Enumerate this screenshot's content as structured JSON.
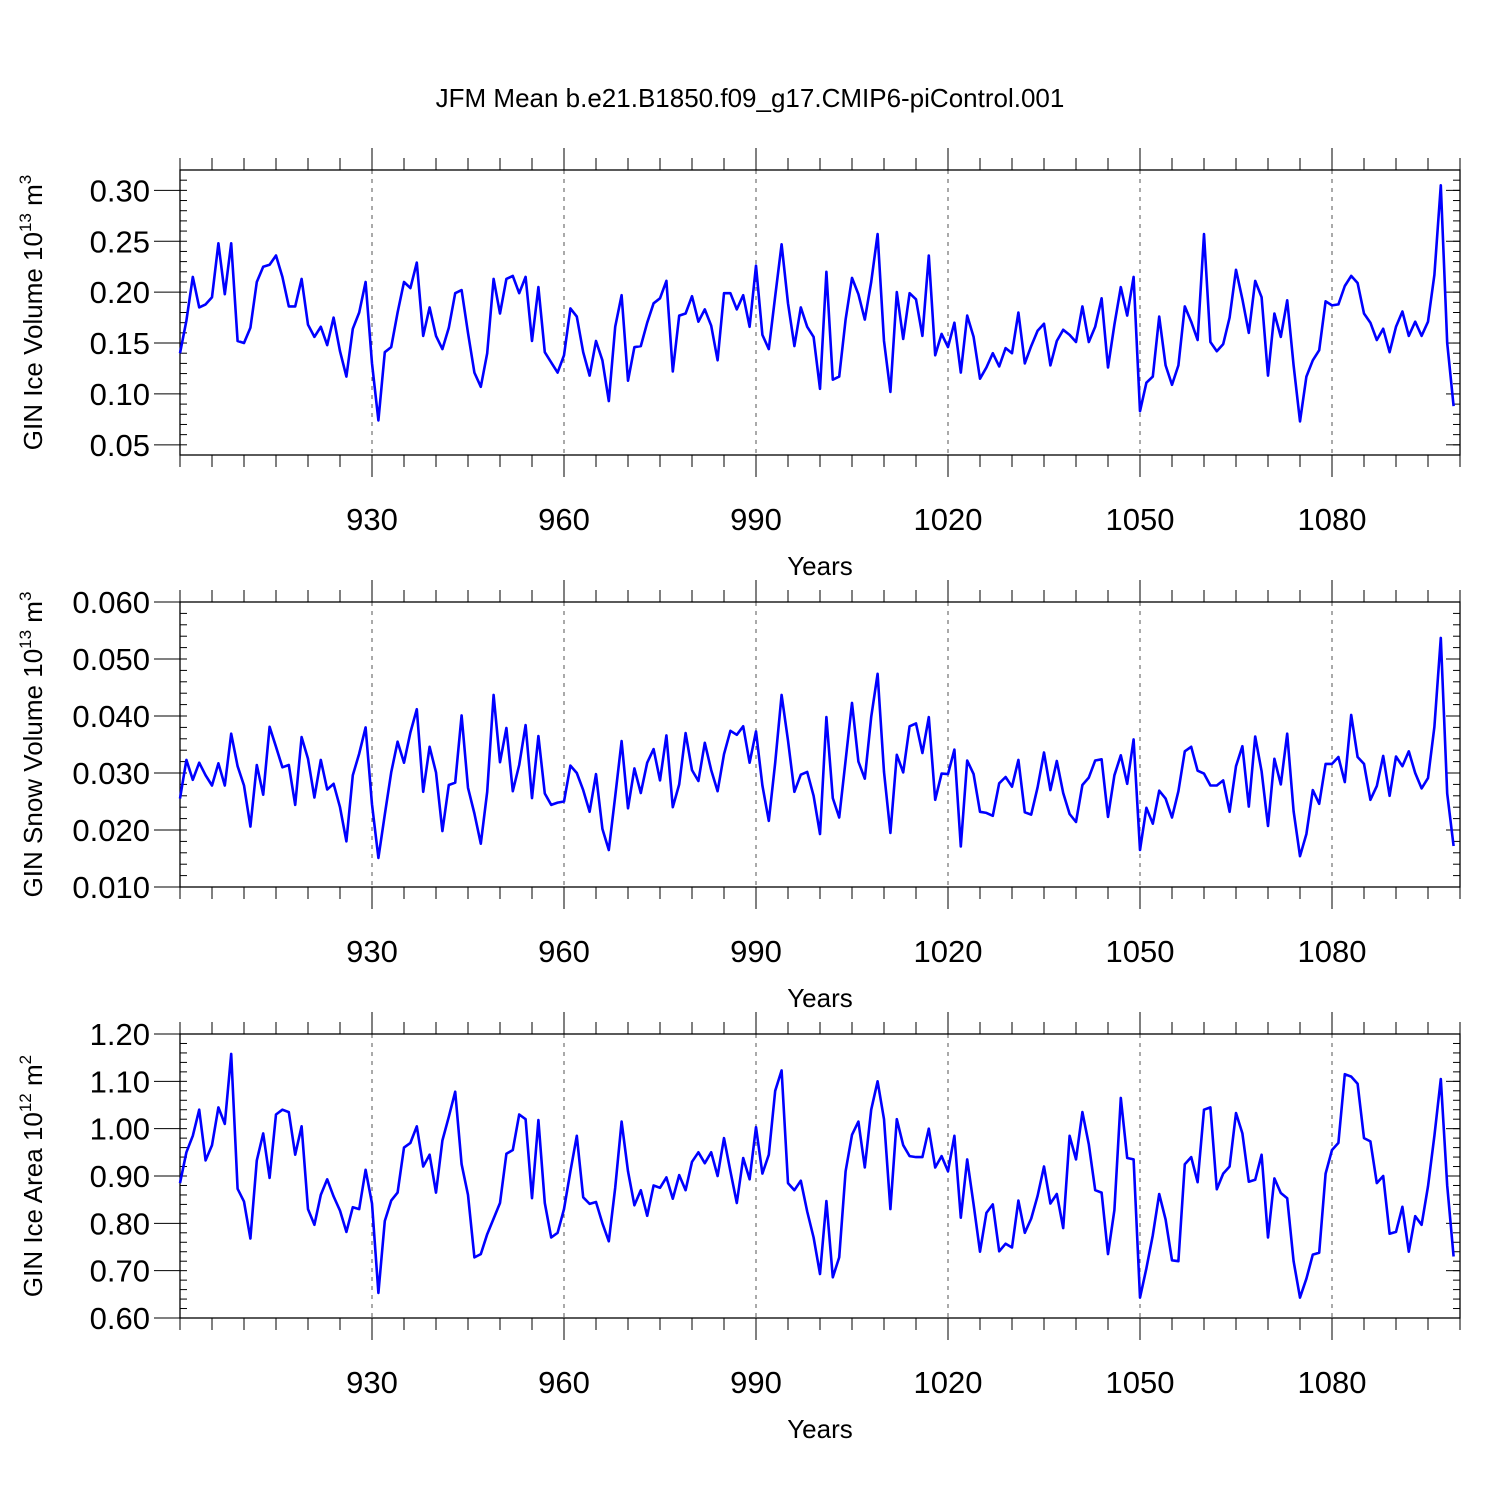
{
  "title": "JFM Mean b.e21.B1850.f09_g17.CMIP6-piControl.001",
  "colors": {
    "series": "#0000ff",
    "axes": "#000000",
    "grid": "#555555"
  },
  "chart_data": [
    {
      "type": "line",
      "ylabel": {
        "main": "GIN Ice Volume 10",
        "sup": "13",
        "unit": " m",
        "unit_sup": "3"
      },
      "xlabel": "Years",
      "xlim": [
        900,
        1100
      ],
      "ylim": [
        0.04,
        0.32
      ],
      "x_ticks": [
        930,
        960,
        990,
        1020,
        1050,
        1080
      ],
      "x_tick_labels": [
        "930",
        "960",
        "990",
        "1020",
        "1050",
        "1080"
      ],
      "y_ticks": [
        0.05,
        0.1,
        0.15,
        0.2,
        0.25,
        0.3
      ],
      "y_tick_labels": [
        "0.05",
        "0.10",
        "0.15",
        "0.20",
        "0.25",
        "0.30"
      ],
      "grid": "x-dashed",
      "series": [
        {
          "x_start": 900,
          "x_step": 1,
          "values": [
            0.14,
            0.172,
            0.215,
            0.185,
            0.188,
            0.195,
            0.248,
            0.198,
            0.248,
            0.152,
            0.15,
            0.165,
            0.21,
            0.225,
            0.227,
            0.236,
            0.215,
            0.186,
            0.186,
            0.213,
            0.168,
            0.156,
            0.166,
            0.148,
            0.175,
            0.142,
            0.117,
            0.164,
            0.18,
            0.21,
            0.13,
            0.074,
            0.141,
            0.146,
            0.18,
            0.21,
            0.204,
            0.229,
            0.157,
            0.185,
            0.157,
            0.144,
            0.165,
            0.199,
            0.202,
            0.16,
            0.121,
            0.107,
            0.14,
            0.213,
            0.179,
            0.213,
            0.216,
            0.199,
            0.215,
            0.152,
            0.205,
            0.141,
            0.131,
            0.121,
            0.138,
            0.184,
            0.176,
            0.141,
            0.118,
            0.152,
            0.133,
            0.093,
            0.166,
            0.197,
            0.113,
            0.146,
            0.147,
            0.17,
            0.189,
            0.194,
            0.211,
            0.122,
            0.177,
            0.179,
            0.196,
            0.171,
            0.183,
            0.167,
            0.133,
            0.199,
            0.199,
            0.183,
            0.197,
            0.166,
            0.226,
            0.158,
            0.144,
            0.196,
            0.247,
            0.189,
            0.147,
            0.185,
            0.166,
            0.156,
            0.105,
            0.22,
            0.114,
            0.117,
            0.173,
            0.214,
            0.198,
            0.173,
            0.21,
            0.257,
            0.152,
            0.102,
            0.2,
            0.154,
            0.199,
            0.193,
            0.157,
            0.236,
            0.138,
            0.159,
            0.146,
            0.17,
            0.121,
            0.177,
            0.156,
            0.115,
            0.126,
            0.14,
            0.127,
            0.145,
            0.14,
            0.18,
            0.13,
            0.147,
            0.162,
            0.169,
            0.128,
            0.152,
            0.163,
            0.158,
            0.151,
            0.186,
            0.151,
            0.166,
            0.194,
            0.126,
            0.168,
            0.205,
            0.177,
            0.215,
            0.083,
            0.111,
            0.117,
            0.176,
            0.128,
            0.109,
            0.128,
            0.186,
            0.171,
            0.153,
            0.257,
            0.151,
            0.142,
            0.149,
            0.175,
            0.222,
            0.193,
            0.16,
            0.211,
            0.195,
            0.118,
            0.179,
            0.156,
            0.192,
            0.128,
            0.073,
            0.117,
            0.133,
            0.143,
            0.191,
            0.187,
            0.188,
            0.206,
            0.216,
            0.209,
            0.179,
            0.17,
            0.153,
            0.164,
            0.141,
            0.166,
            0.181,
            0.157,
            0.171,
            0.157,
            0.171,
            0.217,
            0.305,
            0.15,
            0.088
          ]
        }
      ]
    },
    {
      "type": "line",
      "ylabel": {
        "main": "GIN Snow Volume 10",
        "sup": "13",
        "unit": " m",
        "unit_sup": "3"
      },
      "xlabel": "Years",
      "xlim": [
        900,
        1100
      ],
      "ylim": [
        0.01,
        0.06
      ],
      "x_ticks": [
        930,
        960,
        990,
        1020,
        1050,
        1080
      ],
      "x_tick_labels": [
        "930",
        "960",
        "990",
        "1020",
        "1050",
        "1080"
      ],
      "y_ticks": [
        0.01,
        0.02,
        0.03,
        0.04,
        0.05,
        0.06
      ],
      "y_tick_labels": [
        "0.010",
        "0.020",
        "0.030",
        "0.040",
        "0.050",
        "0.060"
      ],
      "grid": "x-dashed",
      "series": [
        {
          "x_start": 900,
          "x_step": 1,
          "values": [
            0.0255,
            0.0323,
            0.0288,
            0.0318,
            0.0296,
            0.0278,
            0.0317,
            0.0278,
            0.0369,
            0.0312,
            0.0278,
            0.0206,
            0.0314,
            0.0262,
            0.0381,
            0.0346,
            0.031,
            0.0314,
            0.0244,
            0.0363,
            0.0325,
            0.0257,
            0.0323,
            0.0271,
            0.0281,
            0.024,
            0.018,
            0.0296,
            0.0334,
            0.038,
            0.0245,
            0.0151,
            0.0227,
            0.0301,
            0.0355,
            0.0318,
            0.0371,
            0.0412,
            0.0267,
            0.0346,
            0.0301,
            0.0198,
            0.0279,
            0.0283,
            0.0401,
            0.0274,
            0.0229,
            0.0176,
            0.0267,
            0.0437,
            0.0319,
            0.0379,
            0.0268,
            0.0314,
            0.0384,
            0.0256,
            0.0365,
            0.0264,
            0.0244,
            0.0248,
            0.025,
            0.0313,
            0.03,
            0.027,
            0.0232,
            0.0298,
            0.0202,
            0.0165,
            0.0259,
            0.0356,
            0.0238,
            0.0308,
            0.0265,
            0.0318,
            0.0342,
            0.0287,
            0.0366,
            0.024,
            0.028,
            0.037,
            0.0305,
            0.0286,
            0.0353,
            0.0305,
            0.0268,
            0.0333,
            0.0374,
            0.0367,
            0.0382,
            0.0318,
            0.0373,
            0.0278,
            0.0216,
            0.0318,
            0.0437,
            0.0357,
            0.0267,
            0.0297,
            0.0302,
            0.026,
            0.0193,
            0.0398,
            0.0256,
            0.0222,
            0.0322,
            0.0423,
            0.032,
            0.029,
            0.0398,
            0.0474,
            0.0302,
            0.0195,
            0.0332,
            0.0301,
            0.0382,
            0.0387,
            0.0335,
            0.0398,
            0.0253,
            0.0299,
            0.0298,
            0.0341,
            0.0171,
            0.0322,
            0.0298,
            0.0232,
            0.023,
            0.0225,
            0.0282,
            0.0293,
            0.0276,
            0.0323,
            0.0231,
            0.0227,
            0.0275,
            0.0336,
            0.027,
            0.0321,
            0.0265,
            0.0228,
            0.0214,
            0.0279,
            0.0292,
            0.0322,
            0.0324,
            0.0223,
            0.0296,
            0.0331,
            0.0281,
            0.0359,
            0.0165,
            0.0239,
            0.0211,
            0.0269,
            0.0255,
            0.0222,
            0.0268,
            0.0338,
            0.0346,
            0.0304,
            0.0299,
            0.0278,
            0.0278,
            0.0287,
            0.0232,
            0.0312,
            0.0347,
            0.0241,
            0.0364,
            0.0303,
            0.0207,
            0.0325,
            0.028,
            0.0369,
            0.0233,
            0.0154,
            0.0193,
            0.027,
            0.0246,
            0.0316,
            0.0316,
            0.0328,
            0.0284,
            0.0402,
            0.0328,
            0.0316,
            0.0253,
            0.0277,
            0.033,
            0.026,
            0.0329,
            0.0312,
            0.0338,
            0.03,
            0.0273,
            0.0291,
            0.0381,
            0.0537,
            0.0264,
            0.0172
          ]
        }
      ]
    },
    {
      "type": "line",
      "ylabel": {
        "main": "GIN Ice Area 10",
        "sup": "12",
        "unit": " m",
        "unit_sup": "2"
      },
      "xlabel": "Years",
      "xlim": [
        900,
        1100
      ],
      "ylim": [
        0.6,
        1.2
      ],
      "x_ticks": [
        930,
        960,
        990,
        1020,
        1050,
        1080
      ],
      "x_tick_labels": [
        "930",
        "960",
        "990",
        "1020",
        "1050",
        "1080"
      ],
      "y_ticks": [
        0.6,
        0.7,
        0.8,
        0.9,
        1.0,
        1.1,
        1.2
      ],
      "y_tick_labels": [
        "0.60",
        "0.70",
        "0.80",
        "0.90",
        "1.00",
        "1.10",
        "1.20"
      ],
      "grid": "x-dashed",
      "series": [
        {
          "x_start": 900,
          "x_step": 1,
          "values": [
            0.885,
            0.95,
            0.985,
            1.04,
            0.933,
            0.965,
            1.045,
            1.01,
            1.158,
            0.873,
            0.846,
            0.768,
            0.933,
            0.99,
            0.896,
            1.03,
            1.04,
            1.035,
            0.945,
            1.005,
            0.83,
            0.797,
            0.86,
            0.893,
            0.857,
            0.827,
            0.782,
            0.834,
            0.83,
            0.913,
            0.842,
            0.653,
            0.805,
            0.848,
            0.865,
            0.96,
            0.97,
            1.005,
            0.92,
            0.945,
            0.865,
            0.975,
            1.025,
            1.078,
            0.925,
            0.86,
            0.728,
            0.735,
            0.777,
            0.81,
            0.843,
            0.947,
            0.955,
            1.03,
            1.02,
            0.853,
            1.018,
            0.843,
            0.77,
            0.78,
            0.83,
            0.91,
            0.985,
            0.855,
            0.841,
            0.845,
            0.8,
            0.762,
            0.875,
            1.015,
            0.91,
            0.838,
            0.87,
            0.816,
            0.88,
            0.875,
            0.897,
            0.852,
            0.902,
            0.87,
            0.93,
            0.95,
            0.927,
            0.95,
            0.9,
            0.98,
            0.91,
            0.843,
            0.938,
            0.893,
            1.003,
            0.905,
            0.945,
            1.08,
            1.123,
            0.885,
            0.87,
            0.89,
            0.825,
            0.77,
            0.693,
            0.847,
            0.686,
            0.728,
            0.91,
            0.987,
            1.015,
            0.918,
            1.04,
            1.1,
            1.02,
            0.83,
            1.02,
            0.965,
            0.942,
            0.94,
            0.94,
            1.0,
            0.918,
            0.942,
            0.91,
            0.985,
            0.812,
            0.935,
            0.84,
            0.74,
            0.822,
            0.84,
            0.741,
            0.757,
            0.749,
            0.848,
            0.78,
            0.81,
            0.858,
            0.92,
            0.842,
            0.862,
            0.79,
            0.985,
            0.935,
            1.035,
            0.967,
            0.87,
            0.865,
            0.735,
            0.828,
            1.065,
            0.938,
            0.935,
            0.643,
            0.705,
            0.775,
            0.862,
            0.808,
            0.722,
            0.72,
            0.925,
            0.94,
            0.887,
            1.04,
            1.045,
            0.872,
            0.905,
            0.92,
            1.033,
            0.99,
            0.888,
            0.892,
            0.945,
            0.77,
            0.895,
            0.864,
            0.853,
            0.72,
            0.643,
            0.683,
            0.734,
            0.738,
            0.905,
            0.955,
            0.97,
            1.115,
            1.11,
            1.095,
            0.98,
            0.973,
            0.885,
            0.9,
            0.778,
            0.782,
            0.835,
            0.74,
            0.815,
            0.797,
            0.878,
            0.985,
            1.105,
            0.88,
            0.73
          ]
        }
      ]
    }
  ]
}
